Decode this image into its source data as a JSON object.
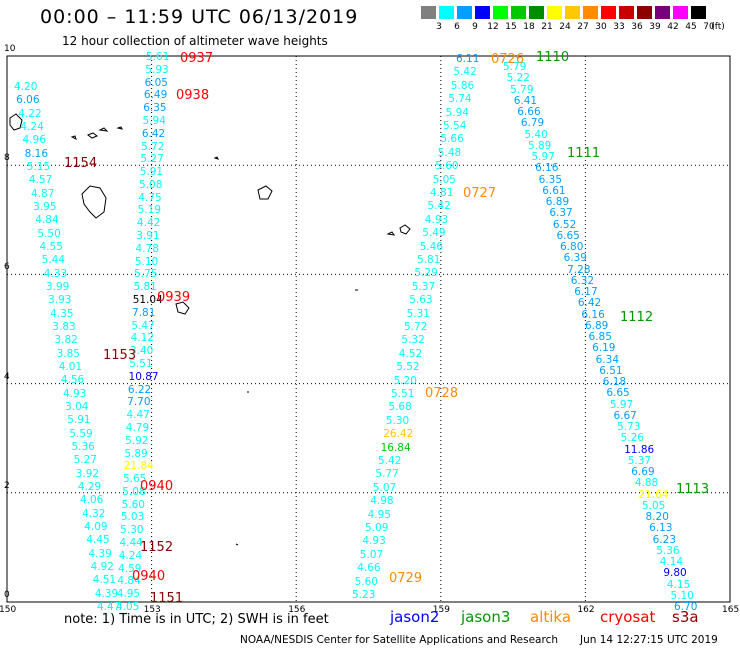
{
  "header": {
    "title": "00:00 – 11:59 UTC 06/13/2019",
    "subtitle": "12 hour collection of altimeter wave heights"
  },
  "color_scale": {
    "unit": "(ft)",
    "bins": [
      {
        "label": "3",
        "color": "#808080"
      },
      {
        "label": "6",
        "color": "#00ffff"
      },
      {
        "label": "9",
        "color": "#00a0ff"
      },
      {
        "label": "12",
        "color": "#0000ff"
      },
      {
        "label": "15",
        "color": "#00ff00"
      },
      {
        "label": "18",
        "color": "#00c800"
      },
      {
        "label": "21",
        "color": "#008c00"
      },
      {
        "label": "24",
        "color": "#ffff00"
      },
      {
        "label": "27",
        "color": "#ffc800"
      },
      {
        "label": "30",
        "color": "#ff8c00"
      },
      {
        "label": "33",
        "color": "#ff0000"
      },
      {
        "label": "36",
        "color": "#c80000"
      },
      {
        "label": "39",
        "color": "#8c0000"
      },
      {
        "label": "42",
        "color": "#780078"
      },
      {
        "label": "45",
        "color": "#ff00ff"
      },
      {
        "label": "70",
        "color": "#000000"
      }
    ]
  },
  "axes": {
    "lon_ticks": [
      "150",
      "153",
      "156",
      "159",
      "162",
      "165"
    ],
    "lat_ticks": [
      "0",
      "2",
      "4",
      "6",
      "8",
      "10"
    ]
  },
  "tracks": [
    {
      "satellite": "cryosat",
      "times": [
        "0937",
        "0938",
        "0939",
        "0940",
        "0940"
      ],
      "values": [
        "5.61",
        "5.93",
        "6.05",
        "6.49",
        "6.35",
        "5.94",
        "6.42",
        "5.72",
        "5.27",
        "5.91",
        "5.08",
        "4.75",
        "5.19",
        "4.42",
        "3.91",
        "4.78",
        "5.10",
        "5.75",
        "5.81",
        "51.04",
        "7.81",
        "5.47",
        "4.12",
        "3.40",
        "5.51",
        "10.87",
        "6.22",
        "7.70",
        "4.47",
        "4.79",
        "5.92",
        "5.89",
        "21.84",
        "5.65",
        "5.08",
        "5.60",
        "5.03",
        "5.30",
        "4.44",
        "4.24",
        "4.59",
        "4.84",
        "4.95",
        "4.05"
      ]
    },
    {
      "satellite": "s3a",
      "times": [
        "1154",
        "1153",
        "1152",
        "1151"
      ],
      "values": [
        "4.20",
        "6.06",
        "4.22",
        "4.24",
        "4.96",
        "8.16",
        "5.15",
        "4.57",
        "4.87",
        "3.95",
        "4.84",
        "5.50",
        "4.55",
        "5.44",
        "4.33",
        "3.99",
        "3.93",
        "4.35",
        "3.83",
        "3.82",
        "3.85",
        "4.01",
        "4.56",
        "4.93",
        "3.04",
        "5.91",
        "5.59",
        "5.36",
        "5.27",
        "3.92",
        "4.29",
        "4.06",
        "4.32",
        "4.09",
        "4.45",
        "4.39",
        "4.92",
        "4.51",
        "4.39",
        "4.47"
      ]
    },
    {
      "satellite": "altika",
      "times": [
        "0726",
        "0727",
        "0728",
        "0729"
      ],
      "values": [
        "6.11",
        "5.42",
        "5.86",
        "5.74",
        "5.94",
        "5.54",
        "5.66",
        "5.48",
        "5.60",
        "5.05",
        "4.81",
        "5.42",
        "4.93",
        "5.49",
        "5.46",
        "5.81",
        "5.29",
        "5.37",
        "5.63",
        "5.31",
        "5.72",
        "5.32",
        "4.52",
        "5.52",
        "5.20",
        "5.51",
        "5.68",
        "5.30",
        "26.42",
        "16.84",
        "5.42",
        "5.77",
        "5.07",
        "4.98",
        "4.95",
        "5.09",
        "4.93",
        "5.07",
        "4.66",
        "5.60",
        "5.23"
      ]
    },
    {
      "satellite": "jason3",
      "times": [
        "1110",
        "1111",
        "1112",
        "1113"
      ],
      "values": [
        "5.79",
        "5.22",
        "5.79",
        "6.41",
        "6.66",
        "6.79",
        "5.40",
        "5.89",
        "5.97",
        "6.16",
        "6.35",
        "6.61",
        "6.89",
        "6.37",
        "6.52",
        "6.65",
        "6.80",
        "6.39",
        "7.28",
        "6.32",
        "6.17",
        "6.42",
        "6.16",
        "6.89",
        "6.85",
        "6.19",
        "6.34",
        "6.51",
        "6.18",
        "6.65",
        "5.97",
        "6.67",
        "5.73",
        "5.26",
        "11.86",
        "5.37",
        "6.69",
        "4.88",
        "21.64",
        "5.05",
        "8.20",
        "6.13",
        "6.23",
        "5.36",
        "4.14",
        "9.80",
        "4.15",
        "5.10",
        "6.70"
      ]
    }
  ],
  "note": "note: 1) Time is in UTC; 2) SWH is in feet",
  "satellite_legend": [
    {
      "name": "jason2",
      "color": "#0000ff"
    },
    {
      "name": "jason3",
      "color": "#009900"
    },
    {
      "name": "altika",
      "color": "#ff8c00"
    },
    {
      "name": "cryosat",
      "color": "#ff0000"
    },
    {
      "name": "s3a",
      "color": "#8b0000"
    }
  ],
  "credit": "NOAA/NESDIS Center for Satellite Applications and Research",
  "timestamp": "Jun 14 12:27:15 UTC 2019"
}
